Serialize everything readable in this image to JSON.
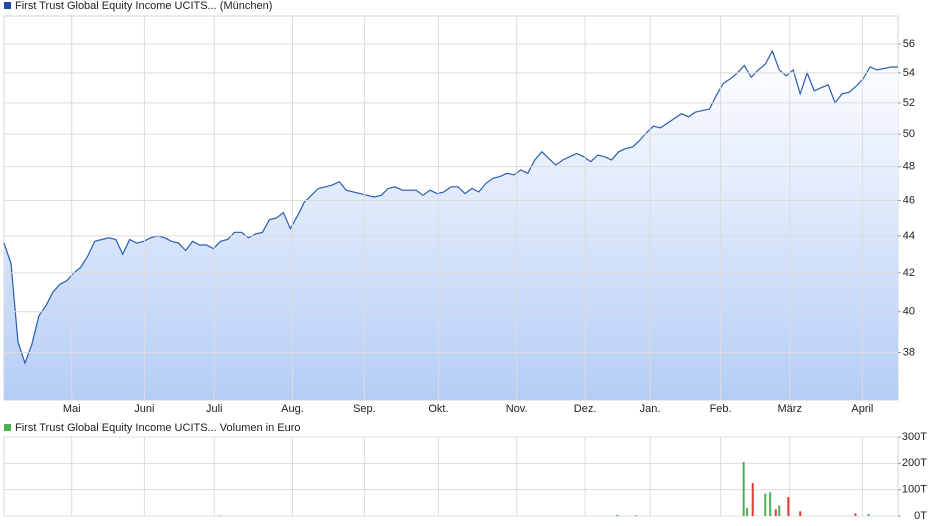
{
  "chart_data": [
    {
      "type": "area",
      "title": "First Trust Global Equity Income UCITS... (München)",
      "color": "#2a5db0",
      "log_scale": true,
      "grid": true,
      "values": [
        43.6,
        42.5,
        38.5,
        37.5,
        38.4,
        39.8,
        40.3,
        41.0,
        41.4,
        41.6,
        42.0,
        42.3,
        42.9,
        43.7,
        43.8,
        43.9,
        43.8,
        43.0,
        43.8,
        43.6,
        43.7,
        43.9,
        44.0,
        43.9,
        43.7,
        43.6,
        43.2,
        43.7,
        43.5,
        43.5,
        43.3,
        43.7,
        43.8,
        44.2,
        44.2,
        43.9,
        44.1,
        44.2,
        44.9,
        45.0,
        45.3,
        44.4,
        45.1,
        45.9,
        46.3,
        46.7,
        46.8,
        46.9,
        47.1,
        46.6,
        46.5,
        46.4,
        46.3,
        46.2,
        46.3,
        46.7,
        46.8,
        46.6,
        46.6,
        46.6,
        46.3,
        46.6,
        46.4,
        46.5,
        46.8,
        46.8,
        46.4,
        46.7,
        46.5,
        47.0,
        47.3,
        47.4,
        47.6,
        47.5,
        47.8,
        47.6,
        48.4,
        48.9,
        48.5,
        48.1,
        48.4,
        48.6,
        48.8,
        48.6,
        48.3,
        48.7,
        48.6,
        48.4,
        48.9,
        49.1,
        49.2,
        49.6,
        50.1,
        50.5,
        50.4,
        50.7,
        51.0,
        51.3,
        51.1,
        51.4,
        51.5,
        51.6,
        52.5,
        53.3,
        53.6,
        54.0,
        54.5,
        53.7,
        54.2,
        54.6,
        55.5,
        54.2,
        53.8,
        54.2,
        52.6,
        54.0,
        52.8,
        53.0,
        53.2,
        52.0,
        52.6,
        52.7,
        53.1,
        53.6,
        54.4,
        54.2,
        54.3,
        54.4,
        54.4
      ],
      "xlim": [
        0,
        128
      ],
      "xticks": [
        {
          "value": 9.7,
          "label": "Mai"
        },
        {
          "value": 20.1,
          "label": "Juni"
        },
        {
          "value": 30.1,
          "label": "Juli"
        },
        {
          "value": 41.3,
          "label": "Aug."
        },
        {
          "value": 51.6,
          "label": "Sep."
        },
        {
          "value": 62.2,
          "label": "Okt."
        },
        {
          "value": 73.4,
          "label": "Nov."
        },
        {
          "value": 83.2,
          "label": "Dez."
        },
        {
          "value": 92.5,
          "label": "Jan."
        },
        {
          "value": 102.6,
          "label": "Feb."
        },
        {
          "value": 112.5,
          "label": "März"
        },
        {
          "value": 122.9,
          "label": "April"
        }
      ],
      "ylim": [
        35.8,
        58
      ],
      "yticks": [
        38,
        40,
        42,
        44,
        46,
        48,
        50,
        52,
        54,
        56
      ]
    },
    {
      "type": "bar",
      "title": "First Trust Global Equity Income UCITS... Volumen in Euro",
      "color": "#4caf50",
      "grid": true,
      "x": [
        30.9,
        87.8,
        90.5,
        105.9,
        106.4,
        107.2,
        109.0,
        109.7,
        110.5,
        111.0,
        112.3,
        114.0,
        121.9,
        123.8
      ],
      "values": [
        2000,
        4000,
        3000,
        205000,
        30000,
        125000,
        85000,
        90000,
        25000,
        40000,
        72000,
        18000,
        10000,
        8000
      ],
      "bar_colors": [
        "#4caf50",
        "#4caf50",
        "#4caf50",
        "#4caf50",
        "#4caf50",
        "#e53935",
        "#4caf50",
        "#4caf50",
        "#e53935",
        "#4caf50",
        "#e53935",
        "#e53935",
        "#e53935",
        "#4caf50"
      ],
      "xlim": [
        0,
        128
      ],
      "xticks": [
        9.7,
        20.1,
        30.1,
        41.3,
        51.6,
        62.2,
        73.4,
        83.2,
        92.5,
        102.6,
        112.5,
        122.9
      ],
      "ylim": [
        0,
        300000
      ],
      "yticks": [
        {
          "value": 0,
          "label": "0T"
        },
        {
          "value": 100000,
          "label": "100T"
        },
        {
          "value": 200000,
          "label": "200T"
        },
        {
          "value": 300000,
          "label": "300T"
        }
      ]
    }
  ]
}
